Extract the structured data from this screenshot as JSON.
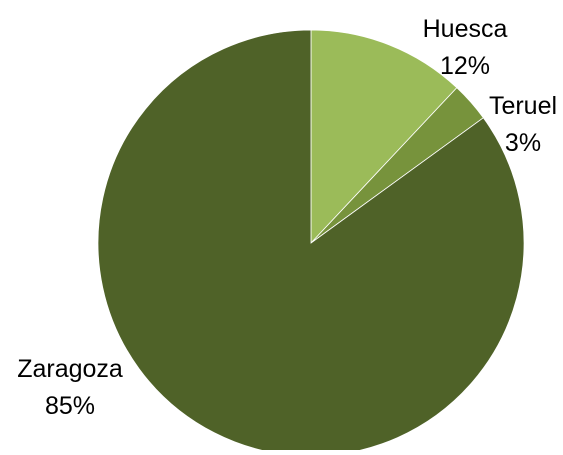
{
  "chart_data": {
    "type": "pie",
    "title": "",
    "slices": [
      {
        "label": "Huesca",
        "value": 12,
        "value_label": "12%",
        "color": "#9bbb59"
      },
      {
        "label": "Teruel",
        "value": 3,
        "value_label": "3%",
        "color": "#77933c"
      },
      {
        "label": "Zaragoza",
        "value": 85,
        "value_label": "85%",
        "color": "#4f6228"
      }
    ],
    "legend": "none",
    "start_angle": "12 o'clock",
    "direction": "clockwise"
  }
}
